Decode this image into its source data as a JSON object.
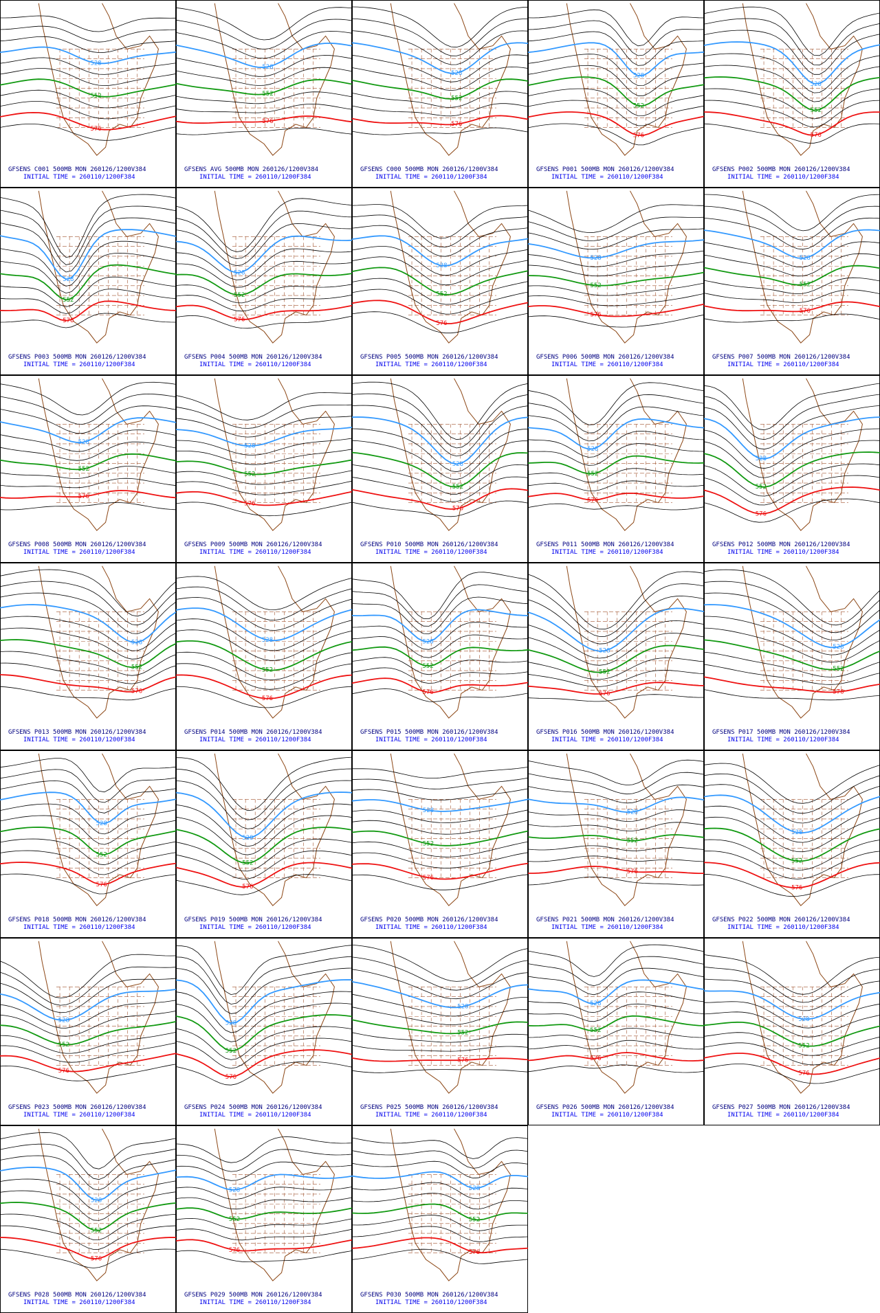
{
  "contours": [
    {
      "label": "528",
      "color": "#3399ff"
    },
    {
      "label": "552",
      "color": "#119911"
    },
    {
      "label": "576",
      "color": "#ee1111"
    }
  ],
  "panels": [
    {
      "title": "GFSENS C001 500MB MON 260126/1200V384",
      "subtitle": "INITIAL TIME = 260110/1200F384"
    },
    {
      "title": "GFSENS AVG 500MB MON 260126/1200V384",
      "subtitle": "INITIAL TIME = 260110/1200F384"
    },
    {
      "title": "GFSENS C000 500MB MON 260126/1200V384",
      "subtitle": "INITIAL TIME = 260110/1200F384"
    },
    {
      "title": "GFSENS P001 500MB MON 260126/1200V384",
      "subtitle": "INITIAL TIME = 260110/1200F384"
    },
    {
      "title": "GFSENS P002 500MB MON 260126/1200V384",
      "subtitle": "INITIAL TIME = 260110/1200F384"
    },
    {
      "title": "GFSENS P003 500MB MON 260126/1200V384",
      "subtitle": "INITIAL TIME = 260110/1200F384"
    },
    {
      "title": "GFSENS P004 500MB MON 260126/1200V384",
      "subtitle": "INITIAL TIME = 260110/1200F384"
    },
    {
      "title": "GFSENS P005 500MB MON 260126/1200V384",
      "subtitle": "INITIAL TIME = 260110/1200F384"
    },
    {
      "title": "GFSENS P006 500MB MON 260126/1200V384",
      "subtitle": "INITIAL TIME = 260110/1200F384"
    },
    {
      "title": "GFSENS P007 500MB MON 260126/1200V384",
      "subtitle": "INITIAL TIME = 260110/1200F384"
    },
    {
      "title": "GFSENS P008 500MB MON 260126/1200V384",
      "subtitle": "INITIAL TIME = 260110/1200F384"
    },
    {
      "title": "GFSENS P009 500MB MON 260126/1200V384",
      "subtitle": "INITIAL TIME = 260110/1200F384"
    },
    {
      "title": "GFSENS P010 500MB MON 260126/1200V384",
      "subtitle": "INITIAL TIME = 260110/1200F384"
    },
    {
      "title": "GFSENS P011 500MB MON 260126/1200V384",
      "subtitle": "INITIAL TIME = 260110/1200F384"
    },
    {
      "title": "GFSENS P012 500MB MON 260126/1200V384",
      "subtitle": "INITIAL TIME = 260110/1200F384"
    },
    {
      "title": "GFSENS P013 500MB MON 260126/1200V384",
      "subtitle": "INITIAL TIME = 260110/1200F384"
    },
    {
      "title": "GFSENS P014 500MB MON 260126/1200V384",
      "subtitle": "INITIAL TIME = 260110/1200F384"
    },
    {
      "title": "GFSENS P015 500MB MON 260126/1200V384",
      "subtitle": "INITIAL TIME = 260110/1200F384"
    },
    {
      "title": "GFSENS P016 500MB MON 260126/1200V384",
      "subtitle": "INITIAL TIME = 260110/1200F384"
    },
    {
      "title": "GFSENS P017 500MB MON 260126/1200V384",
      "subtitle": "INITIAL TIME = 260110/1200F384"
    },
    {
      "title": "GFSENS P018 500MB MON 260126/1200V384",
      "subtitle": "INITIAL TIME = 260110/1200F384"
    },
    {
      "title": "GFSENS P019 500MB MON 260126/1200V384",
      "subtitle": "INITIAL TIME = 260110/1200F384"
    },
    {
      "title": "GFSENS P020 500MB MON 260126/1200V384",
      "subtitle": "INITIAL TIME = 260110/1200F384"
    },
    {
      "title": "GFSENS P021 500MB MON 260126/1200V384",
      "subtitle": "INITIAL TIME = 260110/1200F384"
    },
    {
      "title": "GFSENS P022 500MB MON 260126/1200V384",
      "subtitle": "INITIAL TIME = 260110/1200F384"
    },
    {
      "title": "GFSENS P023 500MB MON 260126/1200V384",
      "subtitle": "INITIAL TIME = 260110/1200F384"
    },
    {
      "title": "GFSENS P024 500MB MON 260126/1200V384",
      "subtitle": "INITIAL TIME = 260110/1200F384"
    },
    {
      "title": "GFSENS P025 500MB MON 260126/1200V384",
      "subtitle": "INITIAL TIME = 260110/1200F384"
    },
    {
      "title": "GFSENS P026 500MB MON 260126/1200V384",
      "subtitle": "INITIAL TIME = 260110/1200F384"
    },
    {
      "title": "GFSENS P027 500MB MON 260126/1200V384",
      "subtitle": "INITIAL TIME = 260110/1200F384"
    },
    {
      "title": "GFSENS P028 500MB MON 260126/1200V384",
      "subtitle": "INITIAL TIME = 260110/1200F384"
    },
    {
      "title": "GFSENS P029 500MB MON 260126/1200V384",
      "subtitle": "INITIAL TIME = 260110/1200F384"
    },
    {
      "title": "GFSENS P030 500MB MON 260126/1200V384",
      "subtitle": "INITIAL TIME = 260110/1200F384"
    }
  ]
}
